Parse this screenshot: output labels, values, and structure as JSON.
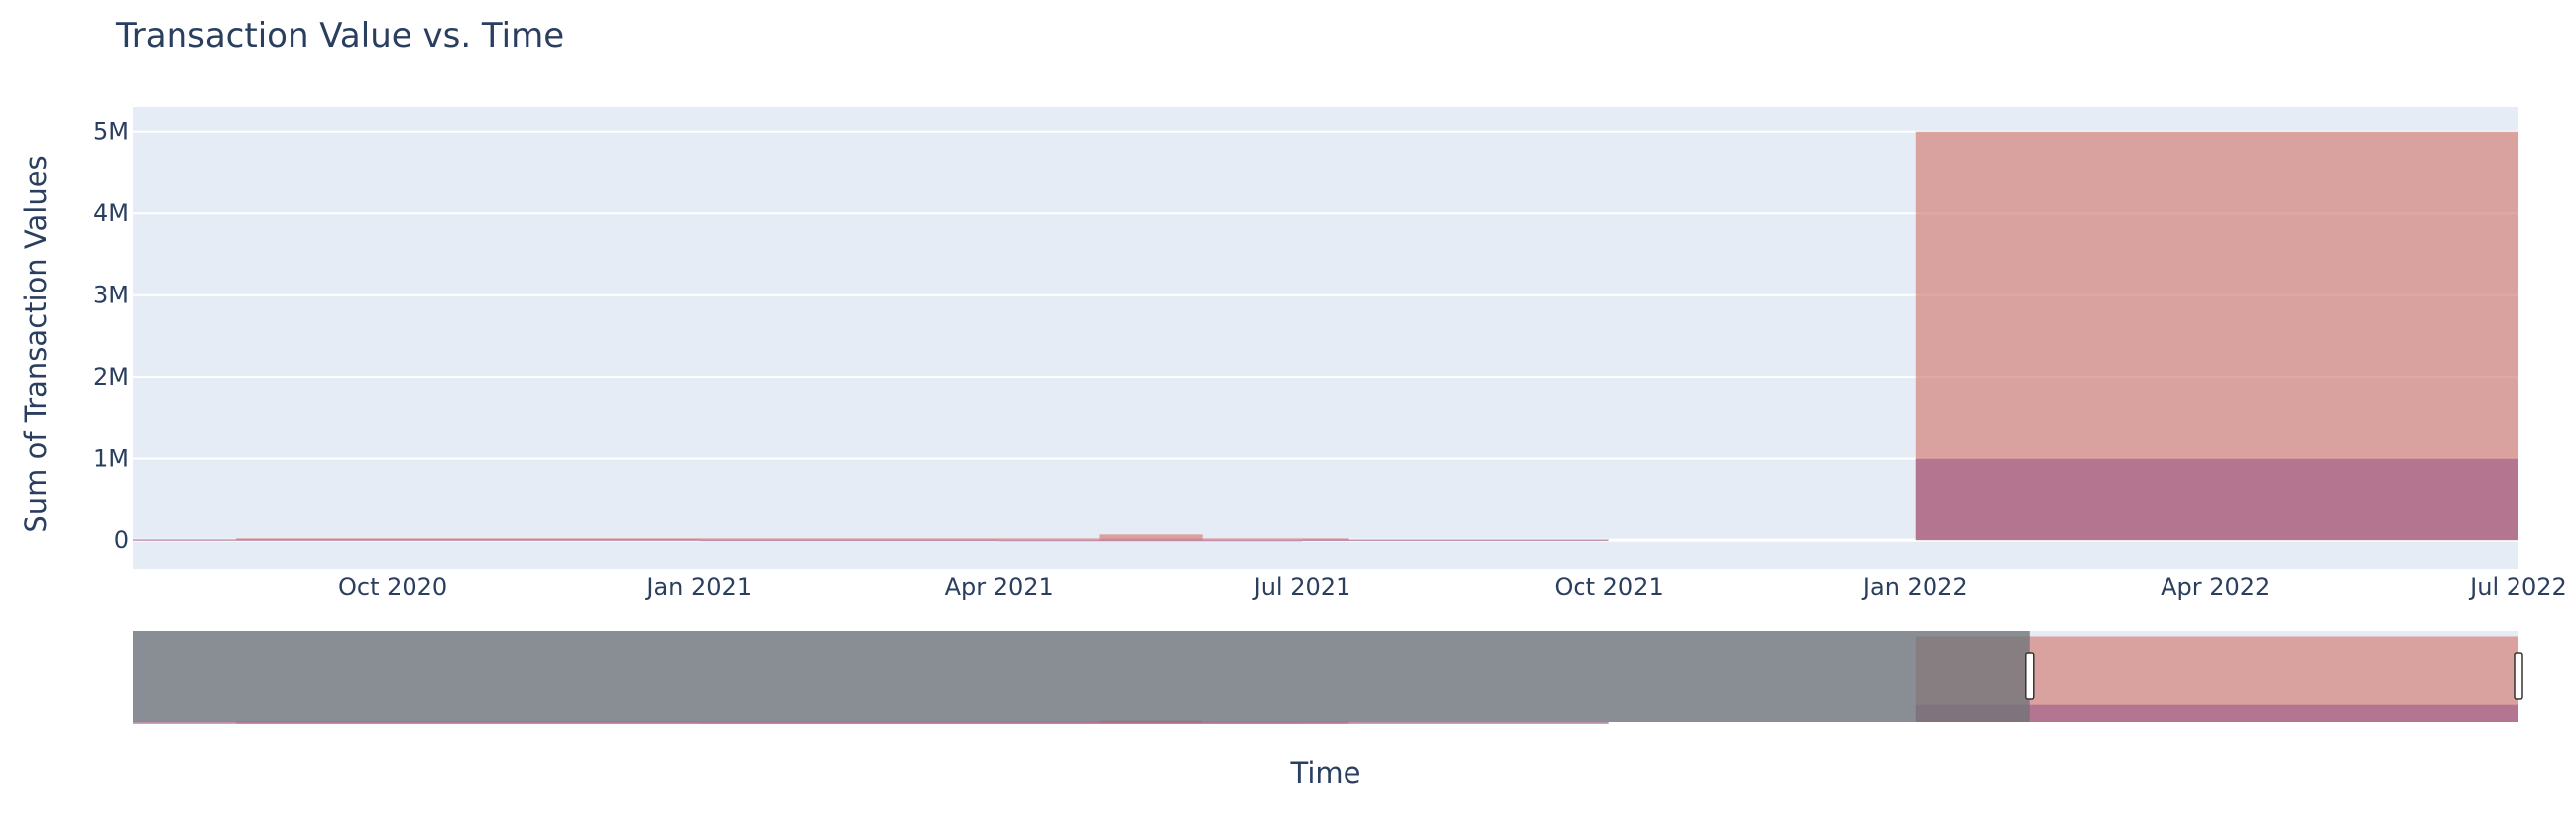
{
  "chart_data": {
    "type": "bar",
    "title": "Transaction Value vs. Time",
    "xlabel": "Time",
    "ylabel": "Sum of Transaction Values",
    "barmode": "overlay",
    "x_tick_labels": [
      "Oct 2020",
      "Jan 2021",
      "Apr 2021",
      "Jul 2021",
      "Oct 2021",
      "Jan 2022",
      "Apr 2022",
      "Jul 2022"
    ],
    "x_tick_dates": [
      "2020-10-01",
      "2021-01-01",
      "2021-04-01",
      "2021-07-01",
      "2021-10-01",
      "2022-01-01",
      "2022-04-01",
      "2022-07-01"
    ],
    "y_tick_labels": [
      "0",
      "1M",
      "2M",
      "3M",
      "4M",
      "5M"
    ],
    "y_tick_values": [
      0,
      1000000,
      2000000,
      3000000,
      4000000,
      5000000
    ],
    "xlim": [
      "2020-07-15",
      "2022-07-01"
    ],
    "ylim": [
      -350000,
      5300000
    ],
    "legend_visible": false,
    "grid": true,
    "rangeslider": {
      "visible": true,
      "selected_range": [
        "2022-01-01",
        "2022-07-01"
      ]
    },
    "series": [
      {
        "color": "#d5837a",
        "opacity": 0.7,
        "bars": [
          {
            "x0": "2020-08-15",
            "x1": "2021-07-15",
            "y": 22000
          },
          {
            "x0": "2021-05-01",
            "x1": "2021-06-01",
            "y": 70000
          },
          {
            "x0": "2022-01-01",
            "x1": "2022-07-01",
            "y": 5000000
          }
        ]
      },
      {
        "color": "#a4638a",
        "opacity": 0.7,
        "bars": [
          {
            "x0": "2020-07-15",
            "x1": "2021-01-01",
            "y": 10000
          },
          {
            "x0": "2021-01-01",
            "x1": "2021-04-01",
            "y": 6000
          },
          {
            "x0": "2021-04-01",
            "x1": "2021-07-01",
            "y": 4000
          },
          {
            "x0": "2021-07-01",
            "x1": "2021-10-01",
            "y": 8000
          },
          {
            "x0": "2022-01-01",
            "x1": "2022-07-01",
            "y": 1000000
          }
        ]
      }
    ]
  },
  "colors": {
    "plot_bg": "#e5ecf6",
    "grid": "#ffffff",
    "text": "#2a3f5f",
    "slider_mask": "#6f7379"
  }
}
